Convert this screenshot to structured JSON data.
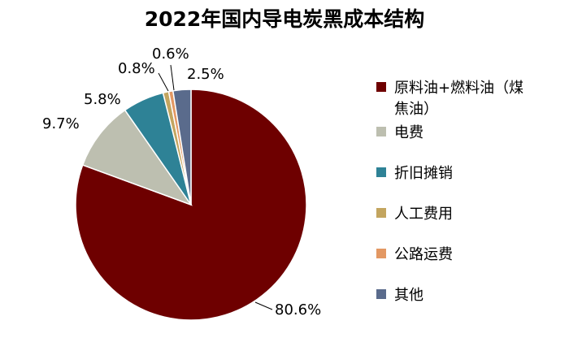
{
  "chart_data": {
    "type": "pie",
    "title": "2022年国内导电炭黑成本结构",
    "legend_position": "right",
    "slices": [
      {
        "name": "原料油+燃料油（煤焦油）",
        "legend_lines": [
          "原料油+燃料油（煤",
          "焦油）"
        ],
        "value": 80.6,
        "label": "80.6%",
        "color": "#6E0000"
      },
      {
        "name": "电费",
        "legend_lines": [
          "电费"
        ],
        "value": 9.7,
        "label": "9.7%",
        "color": "#BDBFB0"
      },
      {
        "name": "折旧摊销",
        "legend_lines": [
          "折旧摊销"
        ],
        "value": 5.8,
        "label": "5.8%",
        "color": "#2E8296"
      },
      {
        "name": "人工费用",
        "legend_lines": [
          "人工费用"
        ],
        "value": 0.8,
        "label": "0.8%",
        "color": "#C3A55F"
      },
      {
        "name": "公路运费",
        "legend_lines": [
          "公路运费"
        ],
        "value": 0.6,
        "label": "0.6%",
        "color": "#E39863"
      },
      {
        "name": "其他",
        "legend_lines": [
          "其他"
        ],
        "value": 2.5,
        "label": "2.5%",
        "color": "#5A6B8C"
      }
    ]
  }
}
